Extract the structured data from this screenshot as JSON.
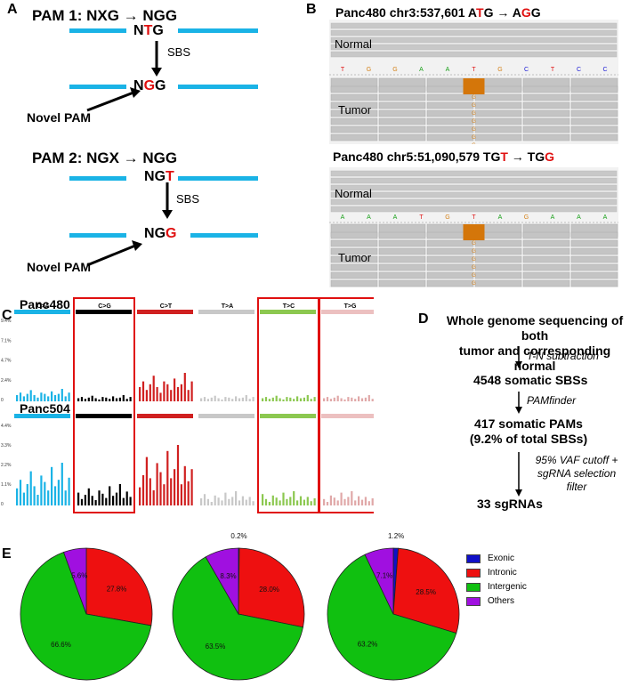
{
  "panel_labels": {
    "a": "A",
    "b": "B",
    "c": "C",
    "d": "D",
    "e": "E"
  },
  "panelA": {
    "pam1": {
      "prefix": "PAM 1: NXG",
      "arrow": "→",
      "suffix": "NGG",
      "top_seq": [
        "N",
        "T",
        "G"
      ],
      "bot_seq": [
        "N",
        "G",
        "G"
      ]
    },
    "pam2": {
      "prefix": "PAM 2: NGX",
      "arrow": "→",
      "suffix": "NGG",
      "top_seq": [
        "N",
        "G",
        "T"
      ],
      "bot_seq": [
        "N",
        "G",
        "G"
      ]
    },
    "sbs_label": "SBS",
    "novel_pam": "Novel PAM"
  },
  "panelB": {
    "block1": {
      "title_pre": "Panc480 chr3:537,601 A",
      "title_red1": "T",
      "title_mid": "G → A",
      "title_red2": "G",
      "title_post": "G",
      "normal": "Normal",
      "tumor": "Tumor",
      "bases": [
        "T",
        "G",
        "G",
        "A",
        "A",
        "T",
        "G",
        "C",
        "T",
        "C",
        "C"
      ]
    },
    "block2": {
      "title_pre": "Panc480 chr5:51,090,579 TG",
      "title_red1": "T",
      "title_mid": " → TG",
      "title_red2": "G",
      "title_post": "",
      "normal": "Normal",
      "tumor": "Tumor",
      "bases": [
        "A",
        "A",
        "A",
        "T",
        "G",
        "T",
        "A",
        "G",
        "A",
        "A",
        "A"
      ]
    },
    "alt_base": "G",
    "colors": {
      "A": "#1aa01a",
      "T": "#e01010",
      "G": "#d4821a",
      "C": "#1a1ad4"
    }
  },
  "panelC": {
    "samples": [
      "Panc480",
      "Panc504"
    ],
    "categories": [
      "C>A",
      "C>G",
      "C>T",
      "T>A",
      "T>C",
      "T>G"
    ],
    "category_colors": [
      "#1ab3e6",
      "#000000",
      "#d02020",
      "#c8c8c8",
      "#8cc850",
      "#ecc0c0"
    ],
    "ticks_top": [
      "9.4%",
      "7.1%",
      "4.7%",
      "2.4%",
      "0"
    ],
    "ticks_bottom": [
      "4.4%",
      "3.3%",
      "2.2%",
      "1.1%",
      "0"
    ]
  },
  "panelD": {
    "header_line1": "Whole genome sequencing of both",
    "header_line2": "tumor and corresponding normal",
    "step1": "T-N subtraction",
    "result1": "4548 somatic SBSs",
    "step2": "PAMfinder",
    "result2_line1": "417 somatic PAMs",
    "result2_line2": "(9.2% of total SBSs)",
    "step3_line1": "95% VAF cutoff +",
    "step3_line2": "sgRNA selection",
    "step3_line3": "filter",
    "result3": "33 sgRNAs"
  },
  "chart_data": [
    {
      "type": "pie",
      "title": "",
      "labels": [
        "Intronic",
        "Intergenic",
        "Others"
      ],
      "values": [
        27.8,
        66.6,
        5.6
      ],
      "value_labels": [
        "27.8%",
        "66.6%",
        "5.6%"
      ]
    },
    {
      "type": "pie",
      "title": "",
      "labels": [
        "Exonic",
        "Intronic",
        "Intergenic",
        "Others"
      ],
      "values": [
        0.2,
        28.0,
        63.5,
        8.3
      ],
      "value_labels": [
        "0.2%",
        "28.0%",
        "63.5%",
        "8.3%"
      ]
    },
    {
      "type": "pie",
      "title": "",
      "labels": [
        "Exonic",
        "Intronic",
        "Intergenic",
        "Others"
      ],
      "values": [
        1.2,
        28.5,
        63.2,
        7.1
      ],
      "value_labels": [
        "1.2%",
        "28.5%",
        "63.2%",
        "7.1%"
      ]
    }
  ],
  "legend": [
    {
      "label": "Exonic",
      "color": "#1010c8"
    },
    {
      "label": "Intronic",
      "color": "#ee1010"
    },
    {
      "label": "Intergenic",
      "color": "#10c010"
    },
    {
      "label": "Others",
      "color": "#a010e0"
    }
  ]
}
